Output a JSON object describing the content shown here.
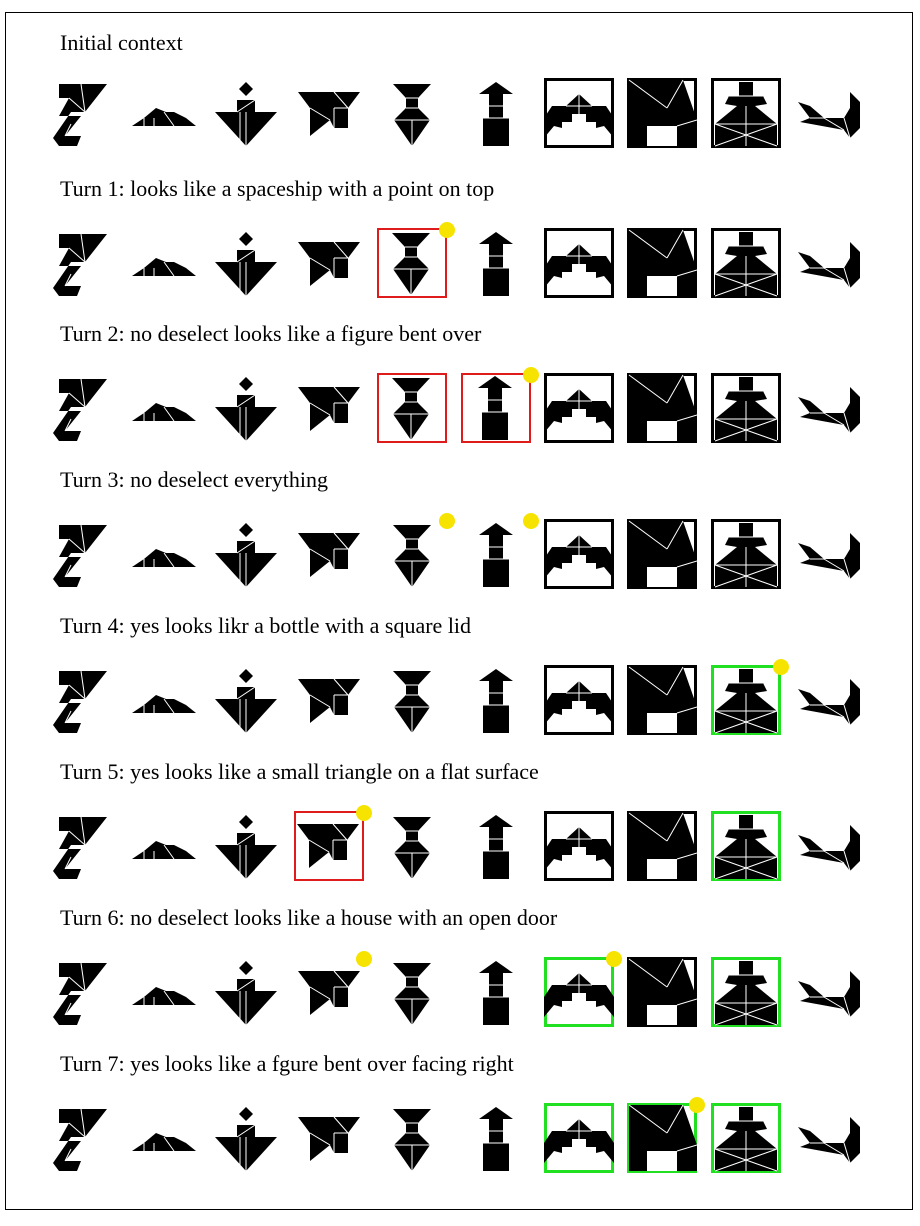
{
  "colors": {
    "selected_box": "#e01b1b",
    "correct_box": "#21e021",
    "neutral_box": "#000000",
    "marker_dot": "#f7e300",
    "shape": "#000000"
  },
  "shapes": [
    "zigzag",
    "low-hill",
    "figure-diamond",
    "bird",
    "hourglass",
    "arrow-post",
    "spaceship",
    "bent-figure",
    "bottle",
    "cat"
  ],
  "rows": [
    {
      "title": "Initial context",
      "items": [
        {
          "shape": "zigzag",
          "box": "none",
          "dot": false
        },
        {
          "shape": "low-hill",
          "box": "none",
          "dot": false
        },
        {
          "shape": "figure-diamond",
          "box": "none",
          "dot": false
        },
        {
          "shape": "bird",
          "box": "none",
          "dot": false
        },
        {
          "shape": "hourglass",
          "box": "none",
          "dot": false
        },
        {
          "shape": "arrow-post",
          "box": "none",
          "dot": false
        },
        {
          "shape": "spaceship",
          "box": "black",
          "dot": false
        },
        {
          "shape": "bent-figure",
          "box": "black",
          "dot": false
        },
        {
          "shape": "bottle",
          "box": "black",
          "dot": false
        },
        {
          "shape": "cat",
          "box": "none",
          "dot": false
        }
      ]
    },
    {
      "title": "Turn 1: looks like a spaceship with a point on top",
      "items": [
        {
          "shape": "zigzag",
          "box": "none",
          "dot": false
        },
        {
          "shape": "low-hill",
          "box": "none",
          "dot": false
        },
        {
          "shape": "figure-diamond",
          "box": "none",
          "dot": false
        },
        {
          "shape": "bird",
          "box": "none",
          "dot": false
        },
        {
          "shape": "hourglass",
          "box": "red",
          "dot": true
        },
        {
          "shape": "arrow-post",
          "box": "none",
          "dot": false
        },
        {
          "shape": "spaceship",
          "box": "black",
          "dot": false
        },
        {
          "shape": "bent-figure",
          "box": "black",
          "dot": false
        },
        {
          "shape": "bottle",
          "box": "black",
          "dot": false
        },
        {
          "shape": "cat",
          "box": "none",
          "dot": false
        }
      ]
    },
    {
      "title": "Turn 2: no deselect looks like a figure bent over",
      "items": [
        {
          "shape": "zigzag",
          "box": "none",
          "dot": false
        },
        {
          "shape": "low-hill",
          "box": "none",
          "dot": false
        },
        {
          "shape": "figure-diamond",
          "box": "none",
          "dot": false
        },
        {
          "shape": "bird",
          "box": "none",
          "dot": false
        },
        {
          "shape": "hourglass",
          "box": "red",
          "dot": false
        },
        {
          "shape": "arrow-post",
          "box": "red",
          "dot": true
        },
        {
          "shape": "spaceship",
          "box": "black",
          "dot": false
        },
        {
          "shape": "bent-figure",
          "box": "black",
          "dot": false
        },
        {
          "shape": "bottle",
          "box": "black",
          "dot": false
        },
        {
          "shape": "cat",
          "box": "none",
          "dot": false
        }
      ]
    },
    {
      "title": "Turn 3: no deselect everything",
      "items": [
        {
          "shape": "zigzag",
          "box": "none",
          "dot": false
        },
        {
          "shape": "low-hill",
          "box": "none",
          "dot": false
        },
        {
          "shape": "figure-diamond",
          "box": "none",
          "dot": false
        },
        {
          "shape": "bird",
          "box": "none",
          "dot": false
        },
        {
          "shape": "hourglass",
          "box": "none",
          "dot": true
        },
        {
          "shape": "arrow-post",
          "box": "none",
          "dot": true
        },
        {
          "shape": "spaceship",
          "box": "black",
          "dot": false
        },
        {
          "shape": "bent-figure",
          "box": "black",
          "dot": false
        },
        {
          "shape": "bottle",
          "box": "black",
          "dot": false
        },
        {
          "shape": "cat",
          "box": "none",
          "dot": false
        }
      ]
    },
    {
      "title": "Turn 4: yes looks likr a bottle with a square lid",
      "items": [
        {
          "shape": "zigzag",
          "box": "none",
          "dot": false
        },
        {
          "shape": "low-hill",
          "box": "none",
          "dot": false
        },
        {
          "shape": "figure-diamond",
          "box": "none",
          "dot": false
        },
        {
          "shape": "bird",
          "box": "none",
          "dot": false
        },
        {
          "shape": "hourglass",
          "box": "none",
          "dot": false
        },
        {
          "shape": "arrow-post",
          "box": "none",
          "dot": false
        },
        {
          "shape": "spaceship",
          "box": "black",
          "dot": false
        },
        {
          "shape": "bent-figure",
          "box": "black",
          "dot": false
        },
        {
          "shape": "bottle",
          "box": "green",
          "dot": true
        },
        {
          "shape": "cat",
          "box": "none",
          "dot": false
        }
      ]
    },
    {
      "title": "Turn 5: yes looks like a small triangle on a flat surface",
      "items": [
        {
          "shape": "zigzag",
          "box": "none",
          "dot": false
        },
        {
          "shape": "low-hill",
          "box": "none",
          "dot": false
        },
        {
          "shape": "figure-diamond",
          "box": "none",
          "dot": false
        },
        {
          "shape": "bird",
          "box": "red",
          "dot": true
        },
        {
          "shape": "hourglass",
          "box": "none",
          "dot": false
        },
        {
          "shape": "arrow-post",
          "box": "none",
          "dot": false
        },
        {
          "shape": "spaceship",
          "box": "black",
          "dot": false
        },
        {
          "shape": "bent-figure",
          "box": "black",
          "dot": false
        },
        {
          "shape": "bottle",
          "box": "green",
          "dot": false
        },
        {
          "shape": "cat",
          "box": "none",
          "dot": false
        }
      ]
    },
    {
      "title": "Turn 6: no deselect looks like a house with an open door",
      "items": [
        {
          "shape": "zigzag",
          "box": "none",
          "dot": false
        },
        {
          "shape": "low-hill",
          "box": "none",
          "dot": false
        },
        {
          "shape": "figure-diamond",
          "box": "none",
          "dot": false
        },
        {
          "shape": "bird",
          "box": "none",
          "dot": true
        },
        {
          "shape": "hourglass",
          "box": "none",
          "dot": false
        },
        {
          "shape": "arrow-post",
          "box": "none",
          "dot": false
        },
        {
          "shape": "spaceship",
          "box": "green",
          "dot": true
        },
        {
          "shape": "bent-figure",
          "box": "black",
          "dot": false
        },
        {
          "shape": "bottle",
          "box": "green",
          "dot": false
        },
        {
          "shape": "cat",
          "box": "none",
          "dot": false
        }
      ]
    },
    {
      "title": "Turn 7: yes looks like a fgure bent over facing right",
      "items": [
        {
          "shape": "zigzag",
          "box": "none",
          "dot": false
        },
        {
          "shape": "low-hill",
          "box": "none",
          "dot": false
        },
        {
          "shape": "figure-diamond",
          "box": "none",
          "dot": false
        },
        {
          "shape": "bird",
          "box": "none",
          "dot": false
        },
        {
          "shape": "hourglass",
          "box": "none",
          "dot": false
        },
        {
          "shape": "arrow-post",
          "box": "none",
          "dot": false
        },
        {
          "shape": "spaceship",
          "box": "green",
          "dot": false
        },
        {
          "shape": "bent-figure",
          "box": "green",
          "dot": true
        },
        {
          "shape": "bottle",
          "box": "green",
          "dot": false
        },
        {
          "shape": "cat",
          "box": "none",
          "dot": false
        }
      ]
    }
  ]
}
